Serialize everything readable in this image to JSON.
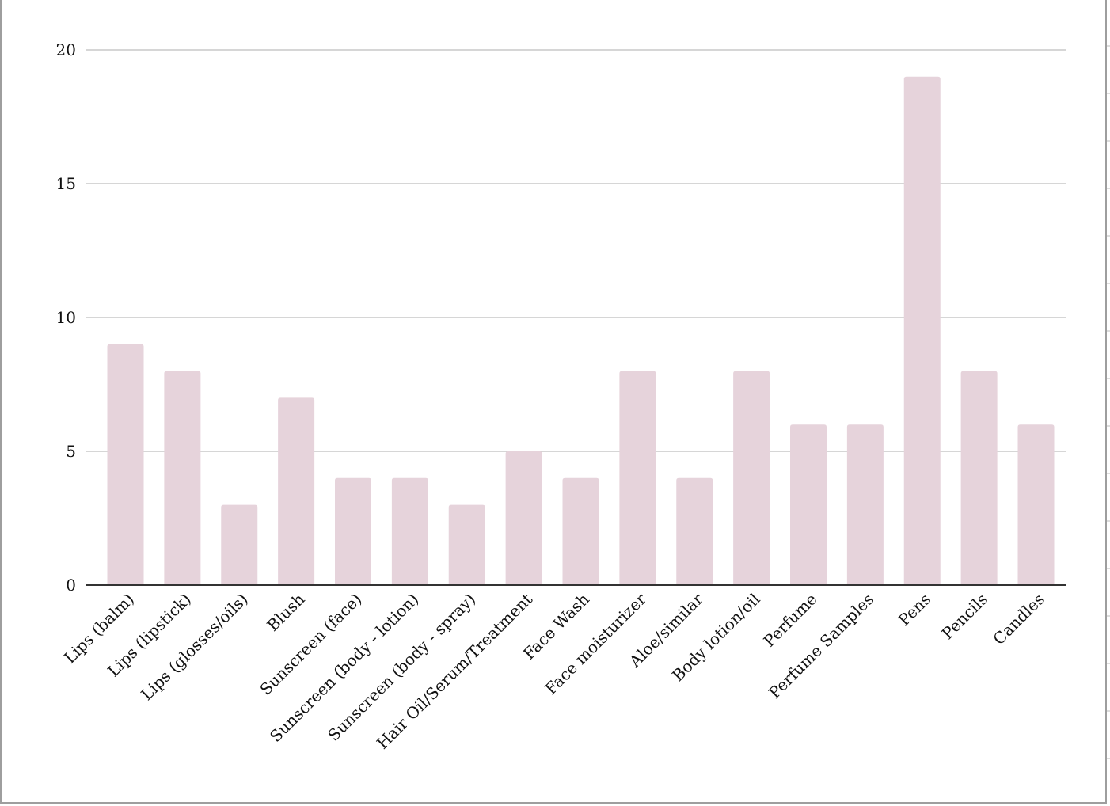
{
  "chart_data": {
    "type": "bar",
    "categories": [
      "Lips (balm)",
      "Lips (lipstick)",
      "Lips (glosses/oils)",
      "Blush",
      "Sunscreen (face)",
      "Sunscreen (body - lotion)",
      "Sunscreen (body - spray)",
      "Hair Oil/Serum/Treatment",
      "Face Wash",
      "Face moisturizer",
      "Aloe/similar",
      "Body lotion/oil",
      "Perfume",
      "Perfume Samples",
      "Pens",
      "Pencils",
      "Candles"
    ],
    "values": [
      9,
      8,
      3,
      7,
      4,
      4,
      3,
      5,
      4,
      8,
      4,
      8,
      6,
      6,
      19,
      8,
      6
    ],
    "ylim": [
      0,
      20
    ],
    "yticks": [
      0,
      5,
      10,
      15,
      20
    ],
    "grid": true,
    "legend": "none",
    "bar_color": "#e6d3db",
    "grid_color": "#c8c8c8",
    "axis_color": "#333333"
  }
}
